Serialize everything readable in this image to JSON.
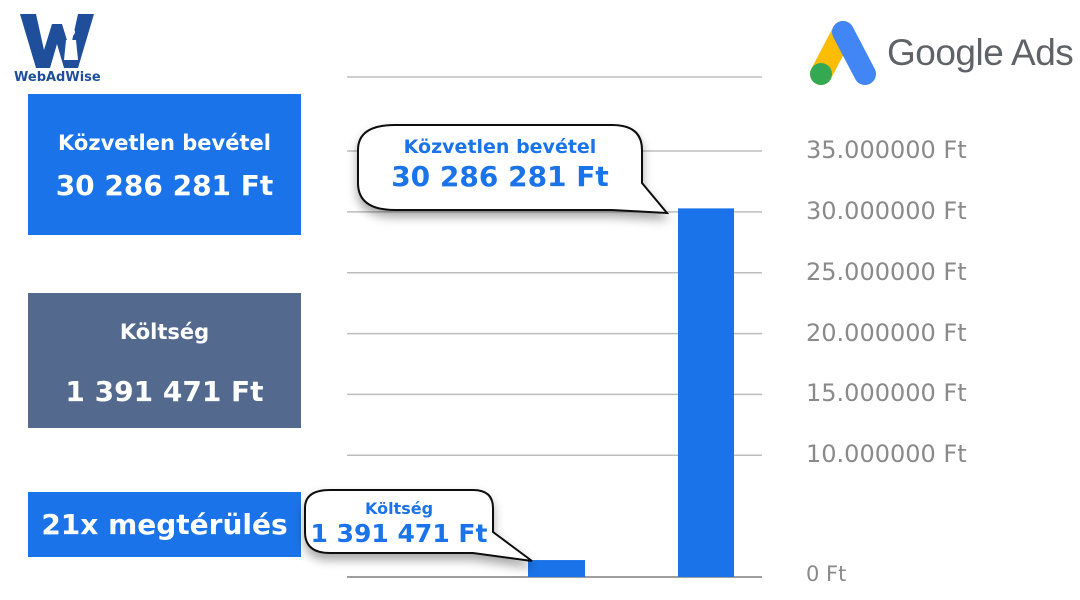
{
  "brand": {
    "name": "WebAdWise",
    "logo_letter": "W"
  },
  "google_ads": {
    "text": "Google Ads"
  },
  "cards": {
    "revenue": {
      "label": "Közvetlen bevétel",
      "value": "30 286 281 Ft",
      "color": "#1a73e8"
    },
    "cost": {
      "label": "Költség",
      "value": "1 391 471 Ft",
      "color": "#536a8e"
    },
    "roi": {
      "label": "21x megtérülés",
      "color": "#1a73e8"
    }
  },
  "callouts": {
    "revenue": {
      "label": "Közvetlen bevétel",
      "value": "30 286 281 Ft"
    },
    "cost": {
      "label": "Költség",
      "value": "1 391 471 Ft"
    }
  },
  "chart_data": {
    "type": "bar",
    "categories": [
      "Költség",
      "Közvetlen bevétel"
    ],
    "values": [
      1391471,
      30286281
    ],
    "ylim": [
      0,
      35000000
    ],
    "yticks": [
      {
        "value": 0,
        "label": "0 Ft"
      },
      {
        "value": 10000000,
        "label": "10.000000 Ft"
      },
      {
        "value": 15000000,
        "label": "15.000000 Ft"
      },
      {
        "value": 20000000,
        "label": "20.000000 Ft"
      },
      {
        "value": 25000000,
        "label": "25.000000 Ft"
      },
      {
        "value": 30000000,
        "label": "30.000000 Ft"
      },
      {
        "value": 35000000,
        "label": "35.000000 Ft"
      }
    ],
    "grid": true,
    "bar_color": "#1a73e8"
  }
}
